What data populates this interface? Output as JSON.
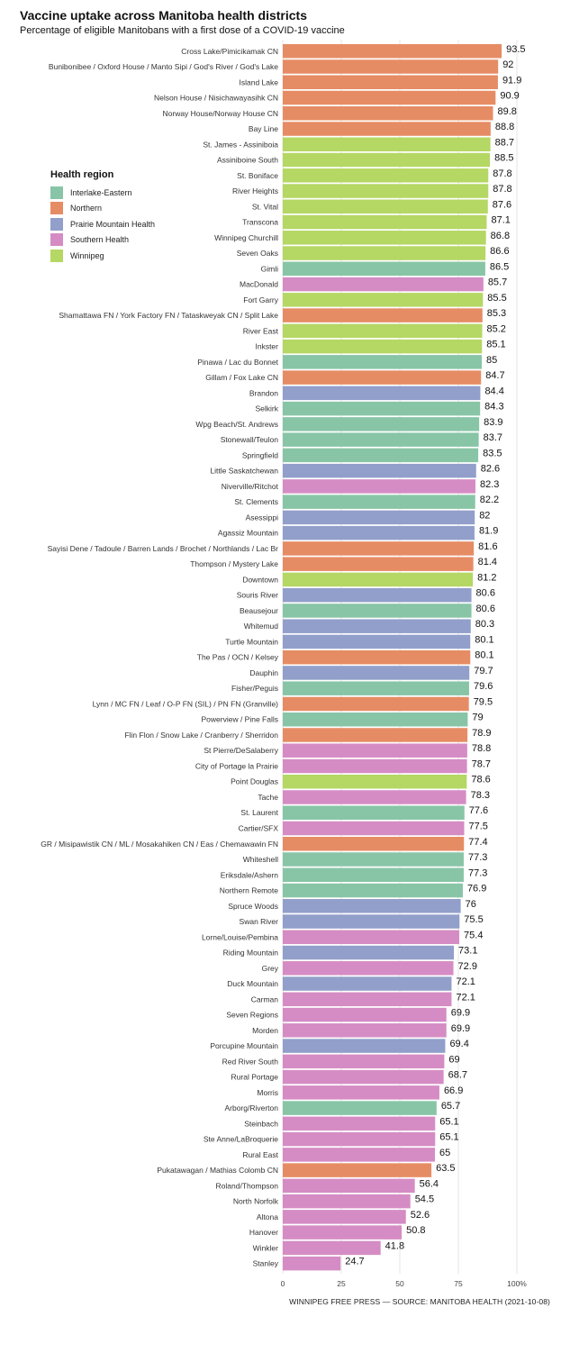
{
  "title": "Vaccine uptake across Manitoba health districts",
  "subtitle": "Percentage of eligible Manitobans with a first dose of a COVID-19 vaccine",
  "source": "WINNIPEG FREE PRESS — SOURCE: MANITOBA HEALTH (2021-10-08)",
  "legend": {
    "title": "Health region",
    "items": [
      {
        "label": "Interlake-Eastern",
        "color": "#88c5a6"
      },
      {
        "label": "Northern",
        "color": "#e68c64"
      },
      {
        "label": "Prairie Mountain Health",
        "color": "#919fca"
      },
      {
        "label": "Southern Health",
        "color": "#d58cc4"
      },
      {
        "label": "Winnipeg",
        "color": "#b5d764"
      }
    ]
  },
  "chart_data": {
    "type": "bar",
    "orientation": "horizontal",
    "title": "Vaccine uptake across Manitoba health districts",
    "subtitle": "Percentage of eligible Manitobans with a first dose of a COVID-19 vaccine",
    "xlabel": "",
    "ylabel": "",
    "xlim": [
      0,
      100
    ],
    "x_ticks": [
      "0",
      "25",
      "50",
      "75",
      "100%"
    ],
    "x_tick_values": [
      0,
      25,
      50,
      75,
      100
    ],
    "grid": true,
    "legend_position": "top-left",
    "series_colors": {
      "Interlake-Eastern": "#88c5a6",
      "Northern": "#e68c64",
      "Prairie Mountain Health": "#919fca",
      "Southern Health": "#d58cc4",
      "Winnipeg": "#b5d764"
    },
    "bars": [
      {
        "label": "Cross Lake/Pimicikamak CN",
        "value": 93.5,
        "region": "Northern"
      },
      {
        "label": "Bunibonibee / Oxford House / Manto Sipi / God's River / God's Lake",
        "value": 92,
        "region": "Northern"
      },
      {
        "label": "Island Lake",
        "value": 91.9,
        "region": "Northern"
      },
      {
        "label": "Nelson House / Nisichawayasihk CN",
        "value": 90.9,
        "region": "Northern"
      },
      {
        "label": "Norway House/Norway House CN",
        "value": 89.8,
        "region": "Northern"
      },
      {
        "label": "Bay Line",
        "value": 88.8,
        "region": "Northern"
      },
      {
        "label": "St. James - Assiniboia",
        "value": 88.7,
        "region": "Winnipeg"
      },
      {
        "label": "Assiniboine South",
        "value": 88.5,
        "region": "Winnipeg"
      },
      {
        "label": "St. Boniface",
        "value": 87.8,
        "region": "Winnipeg"
      },
      {
        "label": "River Heights",
        "value": 87.8,
        "region": "Winnipeg"
      },
      {
        "label": "St. Vital",
        "value": 87.6,
        "region": "Winnipeg"
      },
      {
        "label": "Transcona",
        "value": 87.1,
        "region": "Winnipeg"
      },
      {
        "label": "Winnipeg Churchill",
        "value": 86.8,
        "region": "Winnipeg"
      },
      {
        "label": "Seven Oaks",
        "value": 86.6,
        "region": "Winnipeg"
      },
      {
        "label": "Gimli",
        "value": 86.5,
        "region": "Interlake-Eastern"
      },
      {
        "label": "MacDonald",
        "value": 85.7,
        "region": "Southern Health"
      },
      {
        "label": "Fort Garry",
        "value": 85.5,
        "region": "Winnipeg"
      },
      {
        "label": "Shamattawa FN / York Factory FN  / Tataskweyak CN / Split Lake",
        "value": 85.3,
        "region": "Northern"
      },
      {
        "label": "River East",
        "value": 85.2,
        "region": "Winnipeg"
      },
      {
        "label": "Inkster",
        "value": 85.1,
        "region": "Winnipeg"
      },
      {
        "label": "Pinawa / Lac du Bonnet",
        "value": 85,
        "region": "Interlake-Eastern"
      },
      {
        "label": "Gillam / Fox Lake CN",
        "value": 84.7,
        "region": "Northern"
      },
      {
        "label": "Brandon",
        "value": 84.4,
        "region": "Prairie Mountain Health"
      },
      {
        "label": "Selkirk",
        "value": 84.3,
        "region": "Interlake-Eastern"
      },
      {
        "label": "Wpg Beach/St. Andrews",
        "value": 83.9,
        "region": "Interlake-Eastern"
      },
      {
        "label": "Stonewall/Teulon",
        "value": 83.7,
        "region": "Interlake-Eastern"
      },
      {
        "label": "Springfield",
        "value": 83.5,
        "region": "Interlake-Eastern"
      },
      {
        "label": "Little Saskatchewan",
        "value": 82.6,
        "region": "Prairie Mountain Health"
      },
      {
        "label": "Niverville/Ritchot",
        "value": 82.3,
        "region": "Southern Health"
      },
      {
        "label": "St. Clements",
        "value": 82.2,
        "region": "Interlake-Eastern"
      },
      {
        "label": "Asessippi",
        "value": 82,
        "region": "Prairie Mountain Health"
      },
      {
        "label": "Agassiz Mountain",
        "value": 81.9,
        "region": "Prairie Mountain Health"
      },
      {
        "label": "Sayisi Dene / Tadoule / Barren Lands / Brochet / Northlands / Lac Br",
        "value": 81.6,
        "region": "Northern"
      },
      {
        "label": "Thompson / Mystery Lake",
        "value": 81.4,
        "region": "Northern"
      },
      {
        "label": "Downtown",
        "value": 81.2,
        "region": "Winnipeg"
      },
      {
        "label": "Souris River",
        "value": 80.6,
        "region": "Prairie Mountain Health"
      },
      {
        "label": "Beausejour",
        "value": 80.6,
        "region": "Interlake-Eastern"
      },
      {
        "label": "Whitemud",
        "value": 80.3,
        "region": "Prairie Mountain Health"
      },
      {
        "label": "Turtle Mountain",
        "value": 80.1,
        "region": "Prairie Mountain Health"
      },
      {
        "label": "The Pas / OCN / Kelsey",
        "value": 80.1,
        "region": "Northern"
      },
      {
        "label": "Dauphin",
        "value": 79.7,
        "region": "Prairie Mountain Health"
      },
      {
        "label": "Fisher/Peguis",
        "value": 79.6,
        "region": "Interlake-Eastern"
      },
      {
        "label": "Lynn / MC FN / Leaf / O-P FN (SIL) / PN FN (Granville)",
        "value": 79.5,
        "region": "Northern"
      },
      {
        "label": "Powerview / Pine Falls",
        "value": 79,
        "region": "Interlake-Eastern"
      },
      {
        "label": "Flin Flon / Snow Lake / Cranberry / Sherridon",
        "value": 78.9,
        "region": "Northern"
      },
      {
        "label": "St Pierre/DeSalaberry",
        "value": 78.8,
        "region": "Southern Health"
      },
      {
        "label": "City of Portage la Prairie",
        "value": 78.7,
        "region": "Southern Health"
      },
      {
        "label": "Point Douglas",
        "value": 78.6,
        "region": "Winnipeg"
      },
      {
        "label": "Tache",
        "value": 78.3,
        "region": "Southern Health"
      },
      {
        "label": "St. Laurent",
        "value": 77.6,
        "region": "Interlake-Eastern"
      },
      {
        "label": "Cartier/SFX",
        "value": 77.5,
        "region": "Southern Health"
      },
      {
        "label": "GR / Misipawistik CN / ML / Mosakahiken CN / Eas / Chemawawin FN",
        "value": 77.4,
        "region": "Northern"
      },
      {
        "label": "Whiteshell",
        "value": 77.3,
        "region": "Interlake-Eastern"
      },
      {
        "label": "Eriksdale/Ashern",
        "value": 77.3,
        "region": "Interlake-Eastern"
      },
      {
        "label": "Northern Remote",
        "value": 76.9,
        "region": "Interlake-Eastern"
      },
      {
        "label": "Spruce Woods",
        "value": 76,
        "region": "Prairie Mountain Health"
      },
      {
        "label": "Swan River",
        "value": 75.5,
        "region": "Prairie Mountain Health"
      },
      {
        "label": "Lorne/Louise/Pembina",
        "value": 75.4,
        "region": "Southern Health"
      },
      {
        "label": "Riding Mountain",
        "value": 73.1,
        "region": "Prairie Mountain Health"
      },
      {
        "label": "Grey",
        "value": 72.9,
        "region": "Southern Health"
      },
      {
        "label": "Duck Mountain",
        "value": 72.1,
        "region": "Prairie Mountain Health"
      },
      {
        "label": "Carman",
        "value": 72.1,
        "region": "Southern Health"
      },
      {
        "label": "Seven Regions",
        "value": 69.9,
        "region": "Southern Health"
      },
      {
        "label": "Morden",
        "value": 69.9,
        "region": "Southern Health"
      },
      {
        "label": "Porcupine Mountain",
        "value": 69.4,
        "region": "Prairie Mountain Health"
      },
      {
        "label": "Red River South",
        "value": 69,
        "region": "Southern Health"
      },
      {
        "label": "Rural Portage",
        "value": 68.7,
        "region": "Southern Health"
      },
      {
        "label": "Morris",
        "value": 66.9,
        "region": "Southern Health"
      },
      {
        "label": "Arborg/Riverton",
        "value": 65.7,
        "region": "Interlake-Eastern"
      },
      {
        "label": "Steinbach",
        "value": 65.1,
        "region": "Southern Health"
      },
      {
        "label": "Ste Anne/LaBroquerie",
        "value": 65.1,
        "region": "Southern Health"
      },
      {
        "label": "Rural East",
        "value": 65,
        "region": "Southern Health"
      },
      {
        "label": "Pukatawagan / Mathias Colomb CN",
        "value": 63.5,
        "region": "Northern"
      },
      {
        "label": "Roland/Thompson",
        "value": 56.4,
        "region": "Southern Health"
      },
      {
        "label": "North Norfolk",
        "value": 54.5,
        "region": "Southern Health"
      },
      {
        "label": "Altona",
        "value": 52.6,
        "region": "Southern Health"
      },
      {
        "label": "Hanover",
        "value": 50.8,
        "region": "Southern Health"
      },
      {
        "label": "Winkler",
        "value": 41.8,
        "region": "Southern Health"
      },
      {
        "label": "Stanley",
        "value": 24.7,
        "region": "Southern Health"
      }
    ]
  }
}
